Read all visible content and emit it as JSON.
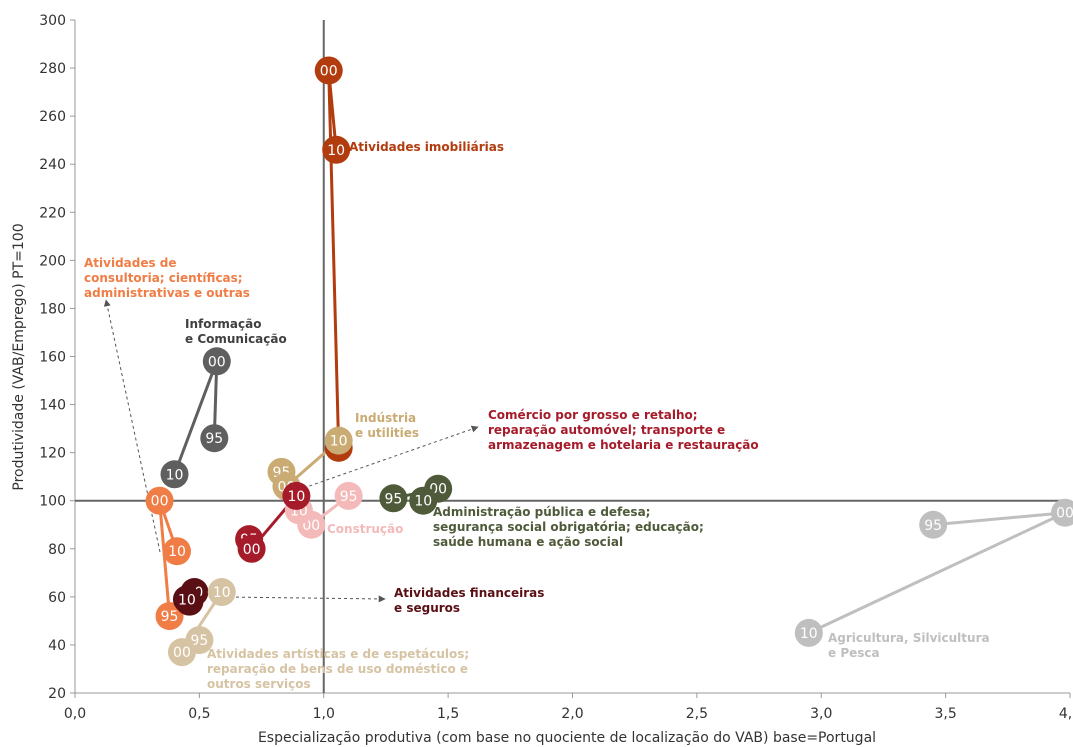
{
  "chart_data": {
    "type": "scatter",
    "xlabel": "Especialização produtiva (com base no quociente de localização do VAB) base=Portugal",
    "ylabel": "Produtividade (VAB/Emprego) PT=100",
    "xlim": [
      0,
      4
    ],
    "ylim": [
      20,
      300
    ],
    "x_ticks": [
      "0,0",
      "0,5",
      "1,0",
      "1,5",
      "2,0",
      "2,5",
      "3,0",
      "3,5",
      "4,0"
    ],
    "y_ticks": [
      "20",
      "40",
      "60",
      "80",
      "100",
      "120",
      "140",
      "160",
      "180",
      "200",
      "220",
      "240",
      "260",
      "280",
      "300"
    ],
    "reference_lines": {
      "x": 1.0,
      "y": 100
    },
    "grid": false,
    "series": [
      {
        "key": "agricultura",
        "color": "#bfbfbf",
        "label_color": "#bfbfbf",
        "label_lines": [
          "Agricultura, Silvicultura",
          "e Pesca"
        ],
        "points": [
          {
            "year": "95",
            "x": 3.45,
            "y": 90
          },
          {
            "year": "00",
            "x": 3.98,
            "y": 95
          },
          {
            "year": "10",
            "x": 2.95,
            "y": 45
          }
        ]
      },
      {
        "key": "administracao",
        "color": "#4f5a3a",
        "label_color": "#4f5a3a",
        "label_lines": [
          "Administração pública e defesa;",
          "segurança social obrigatória; educação;",
          "saúde humana e ação social"
        ],
        "points": [
          {
            "year": "95",
            "x": 1.28,
            "y": 101
          },
          {
            "year": "00",
            "x": 1.46,
            "y": 105
          },
          {
            "year": "10",
            "x": 1.4,
            "y": 100
          }
        ]
      },
      {
        "key": "imobiliarias",
        "color": "#b23c0e",
        "label_color": "#b23c0e",
        "label_lines": [
          "Atividades imobiliárias"
        ],
        "points": [
          {
            "year": "95",
            "x": 1.06,
            "y": 122
          },
          {
            "year": "00",
            "x": 1.02,
            "y": 279
          },
          {
            "year": "10",
            "x": 1.05,
            "y": 246
          }
        ]
      },
      {
        "key": "industria",
        "color": "#c9ab73",
        "label_color": "#c9ab73",
        "label_lines": [
          "Indústria",
          "e utilities"
        ],
        "points": [
          {
            "year": "95",
            "x": 0.83,
            "y": 112
          },
          {
            "year": "00",
            "x": 0.85,
            "y": 106
          },
          {
            "year": "10",
            "x": 1.06,
            "y": 125
          }
        ]
      },
      {
        "key": "construcao",
        "color": "#f4b9b9",
        "label_color": "#f4b9b9",
        "label_lines": [
          "Construção"
        ],
        "points": [
          {
            "year": "95",
            "x": 1.1,
            "y": 102
          },
          {
            "year": "00",
            "x": 0.95,
            "y": 90
          },
          {
            "year": "10",
            "x": 0.9,
            "y": 96
          }
        ]
      },
      {
        "key": "comercio",
        "color": "#a51b2a",
        "label_color": "#a51b2a",
        "label_lines": [
          "Comércio por grosso e retalho;",
          "reparação automóvel; transporte e",
          "armazenagem e hotelaria e restauração"
        ],
        "points": [
          {
            "year": "95",
            "x": 0.7,
            "y": 84
          },
          {
            "year": "00",
            "x": 0.71,
            "y": 80
          },
          {
            "year": "10",
            "x": 0.89,
            "y": 102
          }
        ]
      },
      {
        "key": "informacao",
        "color": "#5f5f5f",
        "label_color": "#404040",
        "label_lines": [
          "Informação",
          "e Comunicação"
        ],
        "points": [
          {
            "year": "95",
            "x": 0.56,
            "y": 126
          },
          {
            "year": "00",
            "x": 0.57,
            "y": 158
          },
          {
            "year": "10",
            "x": 0.4,
            "y": 111
          }
        ]
      },
      {
        "key": "consultoria",
        "color": "#ef7d45",
        "label_color": "#ef7d45",
        "label_lines": [
          "Atividades de",
          "consultoria; científicas;",
          "administrativas e outras"
        ],
        "points": [
          {
            "year": "95",
            "x": 0.38,
            "y": 52
          },
          {
            "year": "00",
            "x": 0.34,
            "y": 100
          },
          {
            "year": "10",
            "x": 0.41,
            "y": 79
          }
        ]
      },
      {
        "key": "financeiras",
        "color": "#5a0f15",
        "label_color": "#5a0f15",
        "label_lines": [
          "Atividades financeiras",
          "e seguros"
        ],
        "points": [
          {
            "year": "95",
            "x": 0.46,
            "y": 58
          },
          {
            "year": "00",
            "x": 0.48,
            "y": 62
          },
          {
            "year": "10",
            "x": 0.45,
            "y": 59
          }
        ]
      },
      {
        "key": "artisticas",
        "color": "#d6c3a3",
        "label_color": "#d6c3a3",
        "label_lines": [
          "Atividades artísticas e de espetáculos;",
          "reparação de bens de uso doméstico e",
          "outros serviços"
        ],
        "points": [
          {
            "year": "95",
            "x": 0.5,
            "y": 42
          },
          {
            "year": "00",
            "x": 0.43,
            "y": 37
          },
          {
            "year": "10",
            "x": 0.59,
            "y": 62
          }
        ]
      }
    ]
  }
}
